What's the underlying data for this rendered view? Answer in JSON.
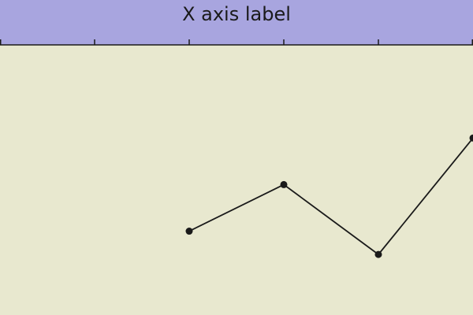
{
  "colors": {
    "plot_background": "#e8e8cf",
    "axis_band": "#a8a5df",
    "line": "#1a1a1a",
    "marker": "#1a1a1a",
    "axis": "#1a1a1a"
  },
  "chart_data": {
    "type": "line",
    "title": "",
    "xlabel": "X axis label",
    "ylabel": "",
    "x_axis_position": "top",
    "grid": false,
    "xlim": [
      0,
      5
    ],
    "ylim": [
      -1.8,
      4
    ],
    "x_ticks": [
      0,
      1,
      2,
      3,
      4,
      5
    ],
    "x_tick_labels": [],
    "series": [
      {
        "x": [
          2,
          3,
          4,
          5
        ],
        "y": [
          0,
          1,
          -0.5,
          2
        ],
        "marker": "circle"
      }
    ]
  }
}
